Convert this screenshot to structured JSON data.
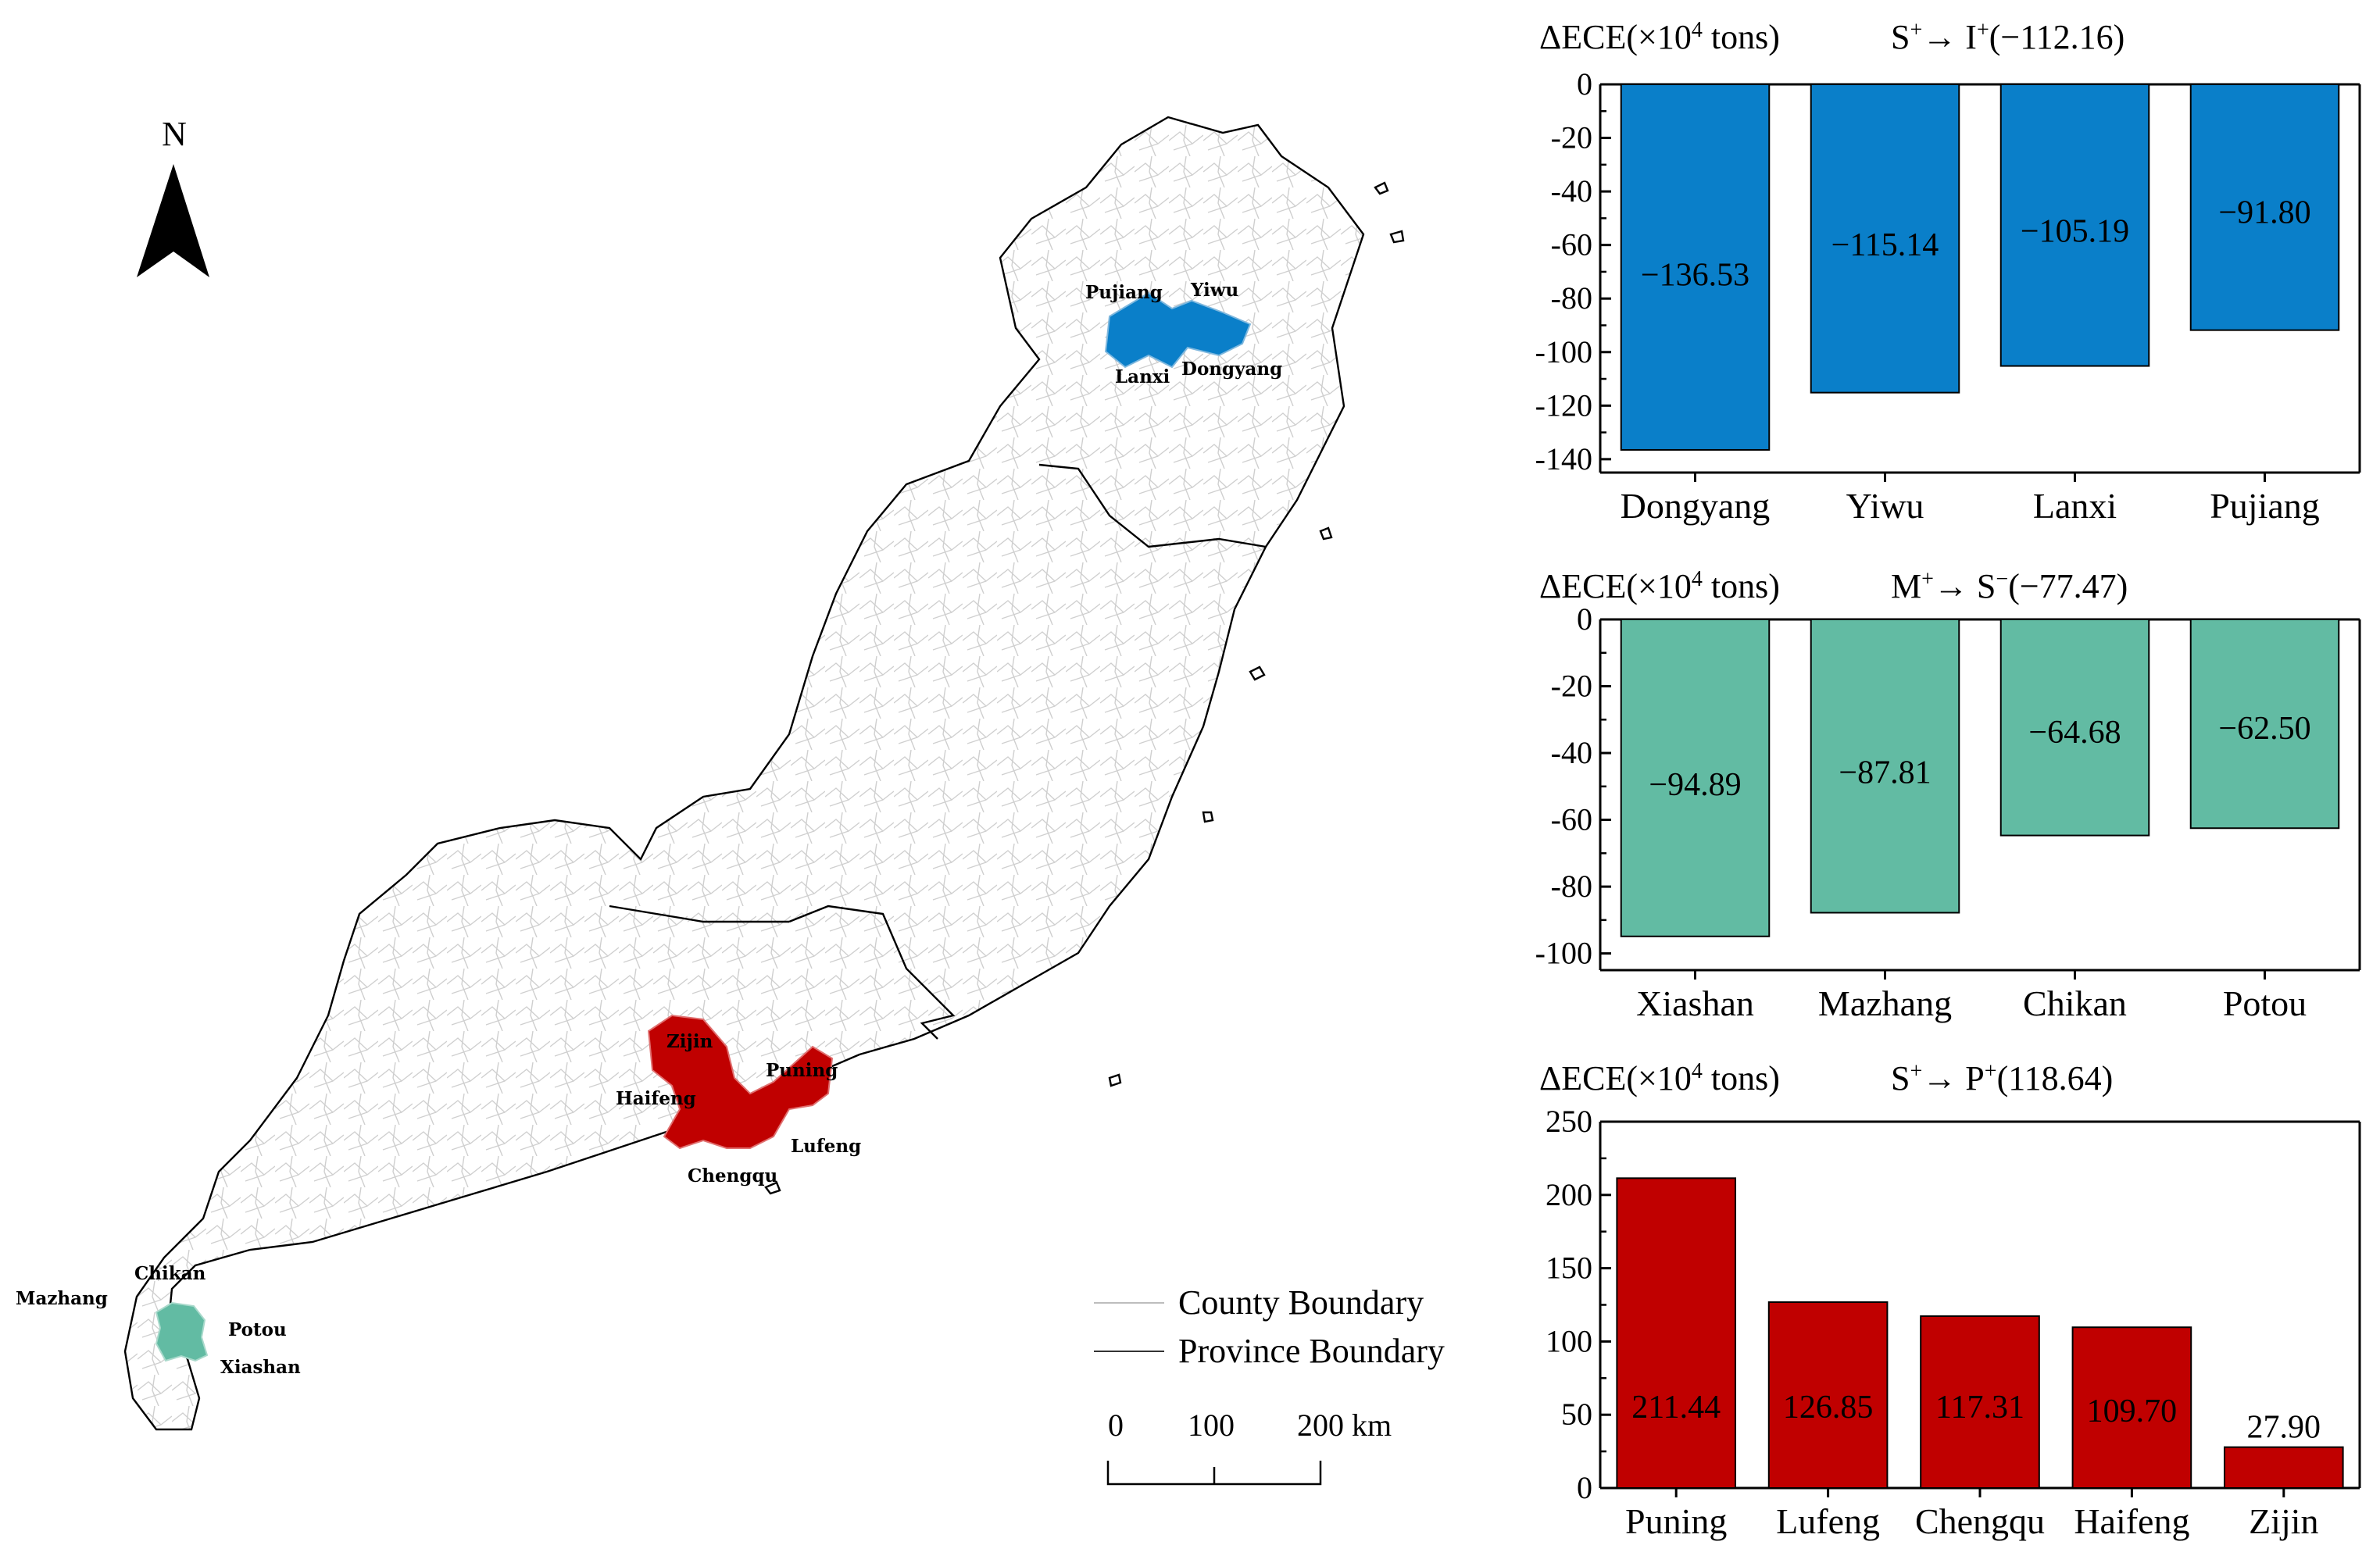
{
  "map": {
    "north_label": "N",
    "legend": {
      "county_label": "County Boundary",
      "province_label": "Province Boundary"
    },
    "scale": {
      "ticks": [
        "0",
        "100",
        "200 km"
      ]
    },
    "region_labels": {
      "north": [
        "Pujiang",
        "Yiwu",
        "Lanxi",
        "Dongyang"
      ],
      "center": [
        "Zijin",
        "Puning",
        "Haifeng",
        "Lufeng",
        "Chengqu"
      ],
      "south": [
        "Chikan",
        "Mazhang",
        "Potou",
        "Xiashan"
      ]
    },
    "colors": {
      "north": "#0a7fc9",
      "center": "#c00000",
      "south": "#62bba3",
      "county_boundary": "#c8c8c8",
      "province_boundary": "#000000"
    }
  },
  "chart_data": [
    {
      "type": "bar",
      "ylabel_prefix": "ΔECE(×10",
      "ylabel_exp": "4",
      "ylabel_suffix": " tons)",
      "title_parts": [
        "S",
        "+",
        "→ I",
        "+",
        "(−112.16)"
      ],
      "categories": [
        "Dongyang",
        "Yiwu",
        "Lanxi",
        "Pujiang"
      ],
      "values": [
        -136.53,
        -115.14,
        -105.19,
        -91.8
      ],
      "value_labels": [
        "−136.53",
        "−115.14",
        "−105.19",
        "−91.80"
      ],
      "ylim": [
        -145,
        0
      ],
      "yticks": [
        0,
        -20,
        -40,
        -60,
        -80,
        -100,
        -120,
        -140
      ],
      "ytick_labels": [
        "0",
        "-20",
        "-40",
        "-60",
        "-80",
        "-100",
        "-120",
        "-140"
      ],
      "color": "#0a7fc9"
    },
    {
      "type": "bar",
      "ylabel_prefix": "ΔECE(×10",
      "ylabel_exp": "4",
      "ylabel_suffix": " tons)",
      "title_parts": [
        "M",
        "+",
        "→ S",
        "−",
        "(−77.47)"
      ],
      "categories": [
        "Xiashan",
        "Mazhang",
        "Chikan",
        "Potou"
      ],
      "values": [
        -94.89,
        -87.81,
        -64.68,
        -62.5
      ],
      "value_labels": [
        "−94.89",
        "−87.81",
        "−64.68",
        "−62.50"
      ],
      "ylim": [
        -105,
        0
      ],
      "yticks": [
        0,
        -20,
        -40,
        -60,
        -80,
        -100
      ],
      "ytick_labels": [
        "0",
        "-20",
        "-40",
        "-60",
        "-80",
        "-100"
      ],
      "color": "#62bba3"
    },
    {
      "type": "bar",
      "ylabel_prefix": "ΔECE(×10",
      "ylabel_exp": "4",
      "ylabel_suffix": " tons)",
      "title_parts": [
        "S",
        "+",
        "→ P",
        "+",
        "(118.64)"
      ],
      "categories": [
        "Puning",
        "Lufeng",
        "Chengqu",
        "Haifeng",
        "Zijin"
      ],
      "values": [
        211.44,
        126.85,
        117.31,
        109.7,
        27.9
      ],
      "value_labels": [
        "211.44",
        "126.85",
        "117.31",
        "109.70",
        "27.90"
      ],
      "ylim": [
        0,
        250
      ],
      "yticks": [
        0,
        50,
        100,
        150,
        200,
        250
      ],
      "ytick_labels": [
        "0",
        "50",
        "100",
        "150",
        "200",
        "250"
      ],
      "color": "#c00000"
    }
  ]
}
